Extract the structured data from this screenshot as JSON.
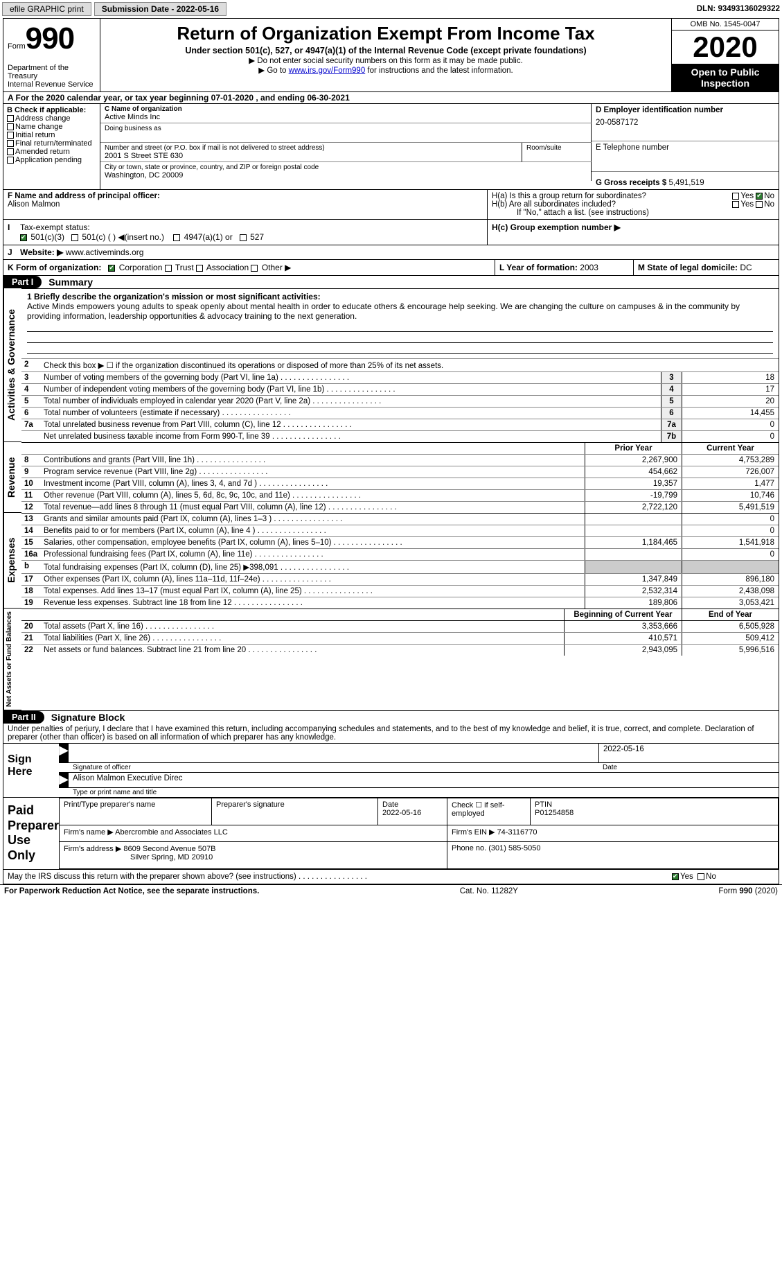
{
  "colors": {
    "accent_link": "#0000cc",
    "header_black": "#000000",
    "check_green": "#2e7d32"
  },
  "topbar": {
    "efile_label": "efile GRAPHIC print",
    "submission_label": "Submission Date - 2022-05-16",
    "dln": "DLN: 93493136029322"
  },
  "header": {
    "form_prefix": "Form",
    "form_number": "990",
    "dept": "Department of the Treasury",
    "irs": "Internal Revenue Service",
    "title": "Return of Organization Exempt From Income Tax",
    "subtitle": "Under section 501(c), 527, or 4947(a)(1) of the Internal Revenue Code (except private foundations)",
    "note1": "▶ Do not enter social security numbers on this form as it may be made public.",
    "note2_pre": "▶ Go to ",
    "note2_link": "www.irs.gov/Form990",
    "note2_post": " for instructions and the latest information.",
    "omb": "OMB No. 1545-0047",
    "year": "2020",
    "otp1": "Open to Public",
    "otp2": "Inspection"
  },
  "row_a": "A For the 2020 calendar year, or tax year beginning 07-01-2020   , and ending 06-30-2021",
  "section_b": {
    "header": "B Check if applicable:",
    "items": [
      "Address change",
      "Name change",
      "Initial return",
      "Final return/terminated",
      "Amended return",
      "Application pending"
    ]
  },
  "section_c": {
    "name_lbl": "C Name of organization",
    "name_val": "Active Minds Inc",
    "dba_lbl": "Doing business as",
    "dba_val": "",
    "street_lbl": "Number and street (or P.O. box if mail is not delivered to street address)",
    "street_val": "2001 S Street STE 630",
    "room_lbl": "Room/suite",
    "room_val": "",
    "city_lbl": "City or town, state or province, country, and ZIP or foreign postal code",
    "city_val": "Washington, DC  20009"
  },
  "section_de": {
    "d_lbl": "D Employer identification number",
    "d_val": "20-0587172",
    "e_lbl": "E Telephone number",
    "e_val": "",
    "g_lbl": "G Gross receipts $",
    "g_val": "5,491,519"
  },
  "section_f": {
    "lbl": "F  Name and address of principal officer:",
    "val": "Alison Malmon"
  },
  "section_h": {
    "ha": "H(a)  Is this a group return for subordinates?",
    "hb": "H(b)  Are all subordinates included?",
    "hb_note": "If \"No,\" attach a list. (see instructions)",
    "hc": "H(c)  Group exemption number ▶",
    "yes": "Yes",
    "no": "No"
  },
  "row_i_lbl": "Tax-exempt status:",
  "row_i_opts": [
    "501(c)(3)",
    "501(c) (   ) ◀(insert no.)",
    "4947(a)(1) or",
    "527"
  ],
  "row_j_lbl": "Website: ▶",
  "row_j_val": "www.activeminds.org",
  "row_k_lbl": "K Form of organization:",
  "row_k_opts": [
    "Corporation",
    "Trust",
    "Association",
    "Other ▶"
  ],
  "row_l_lbl": "L Year of formation:",
  "row_l_val": "2003",
  "row_m_lbl": "M State of legal domicile:",
  "row_m_val": "DC",
  "part1_label": "Part I",
  "part1_title": "Summary",
  "mission_lbl": "1  Briefly describe the organization's mission or most significant activities:",
  "mission_txt": "Active Minds empowers young adults to speak openly about mental health in order to educate others & encourage help seeking. We are changing the culture on campuses & in the community by providing information, leadership opportunities & advocacy training to the next generation.",
  "line2": "Check this box ▶ ☐  if the organization discontinued its operations or disposed of more than 25% of its net assets.",
  "gov_lines": [
    {
      "n": "3",
      "t": "Number of voting members of the governing body (Part VI, line 1a)",
      "b": "3",
      "v": "18"
    },
    {
      "n": "4",
      "t": "Number of independent voting members of the governing body (Part VI, line 1b)",
      "b": "4",
      "v": "17"
    },
    {
      "n": "5",
      "t": "Total number of individuals employed in calendar year 2020 (Part V, line 2a)",
      "b": "5",
      "v": "20"
    },
    {
      "n": "6",
      "t": "Total number of volunteers (estimate if necessary)",
      "b": "6",
      "v": "14,455"
    },
    {
      "n": "7a",
      "t": "Total unrelated business revenue from Part VIII, column (C), line 12",
      "b": "7a",
      "v": "0"
    },
    {
      "n": "",
      "t": "Net unrelated business taxable income from Form 990-T, line 39",
      "b": "7b",
      "v": "0"
    }
  ],
  "col_hdr_prior": "Prior Year",
  "col_hdr_curr": "Current Year",
  "rev_lines": [
    {
      "n": "8",
      "t": "Contributions and grants (Part VIII, line 1h)",
      "p": "2,267,900",
      "c": "4,753,289"
    },
    {
      "n": "9",
      "t": "Program service revenue (Part VIII, line 2g)",
      "p": "454,662",
      "c": "726,007"
    },
    {
      "n": "10",
      "t": "Investment income (Part VIII, column (A), lines 3, 4, and 7d )",
      "p": "19,357",
      "c": "1,477"
    },
    {
      "n": "11",
      "t": "Other revenue (Part VIII, column (A), lines 5, 6d, 8c, 9c, 10c, and 11e)",
      "p": "-19,799",
      "c": "10,746"
    },
    {
      "n": "12",
      "t": "Total revenue—add lines 8 through 11 (must equal Part VIII, column (A), line 12)",
      "p": "2,722,120",
      "c": "5,491,519"
    }
  ],
  "exp_lines": [
    {
      "n": "13",
      "t": "Grants and similar amounts paid (Part IX, column (A), lines 1–3 )",
      "p": "",
      "c": "0"
    },
    {
      "n": "14",
      "t": "Benefits paid to or for members (Part IX, column (A), line 4 )",
      "p": "",
      "c": "0"
    },
    {
      "n": "15",
      "t": "Salaries, other compensation, employee benefits (Part IX, column (A), lines 5–10)",
      "p": "1,184,465",
      "c": "1,541,918"
    },
    {
      "n": "16a",
      "t": "Professional fundraising fees (Part IX, column (A), line 11e)",
      "p": "",
      "c": "0"
    },
    {
      "n": "b",
      "t": "Total fundraising expenses (Part IX, column (D), line 25) ▶398,091",
      "p": "shade",
      "c": "shade"
    },
    {
      "n": "17",
      "t": "Other expenses (Part IX, column (A), lines 11a–11d, 11f–24e)",
      "p": "1,347,849",
      "c": "896,180"
    },
    {
      "n": "18",
      "t": "Total expenses. Add lines 13–17 (must equal Part IX, column (A), line 25)",
      "p": "2,532,314",
      "c": "2,438,098"
    },
    {
      "n": "19",
      "t": "Revenue less expenses. Subtract line 18 from line 12",
      "p": "189,806",
      "c": "3,053,421"
    }
  ],
  "na_hdr_prior": "Beginning of Current Year",
  "na_hdr_curr": "End of Year",
  "na_lines": [
    {
      "n": "20",
      "t": "Total assets (Part X, line 16)",
      "p": "3,353,666",
      "c": "6,505,928"
    },
    {
      "n": "21",
      "t": "Total liabilities (Part X, line 26)",
      "p": "410,571",
      "c": "509,412"
    },
    {
      "n": "22",
      "t": "Net assets or fund balances. Subtract line 21 from line 20",
      "p": "2,943,095",
      "c": "5,996,516"
    }
  ],
  "part2_label": "Part II",
  "part2_title": "Signature Block",
  "penalty": "Under penalties of perjury, I declare that I have examined this return, including accompanying schedules and statements, and to the best of my knowledge and belief, it is true, correct, and complete. Declaration of preparer (other than officer) is based on all information of which preparer has any knowledge.",
  "sign_here": "Sign Here",
  "sig_officer_lbl": "Signature of officer",
  "sig_date": "2022-05-16",
  "sig_date_lbl": "Date",
  "sig_name": "Alison Malmon  Executive Direc",
  "sig_name_lbl": "Type or print name and title",
  "paid_lbl": "Paid Preparer Use Only",
  "paid": {
    "print_lbl": "Print/Type preparer's name",
    "print_val": "",
    "sig_lbl": "Preparer's signature",
    "sig_val": "",
    "date_lbl": "Date",
    "date_val": "2022-05-16",
    "check_lbl": "Check ☐ if self-employed",
    "ptin_lbl": "PTIN",
    "ptin_val": "P01254858",
    "firm_name_lbl": "Firm's name    ▶",
    "firm_name_val": "Abercrombie and Associates LLC",
    "firm_ein_lbl": "Firm's EIN ▶",
    "firm_ein_val": "74-3116770",
    "firm_addr_lbl": "Firm's address ▶",
    "firm_addr_val1": "8609 Second Avenue 507B",
    "firm_addr_val2": "Silver Spring, MD  20910",
    "phone_lbl": "Phone no.",
    "phone_val": "(301) 585-5050"
  },
  "discuss": "May the IRS discuss this return with the preparer shown above? (see instructions)",
  "footer": {
    "left": "For Paperwork Reduction Act Notice, see the separate instructions.",
    "mid": "Cat. No. 11282Y",
    "right_pre": "Form ",
    "right_b": "990",
    "right_post": " (2020)"
  },
  "vtabs": {
    "gov": "Activities & Governance",
    "rev": "Revenue",
    "exp": "Expenses",
    "na": "Net Assets or Fund Balances"
  }
}
